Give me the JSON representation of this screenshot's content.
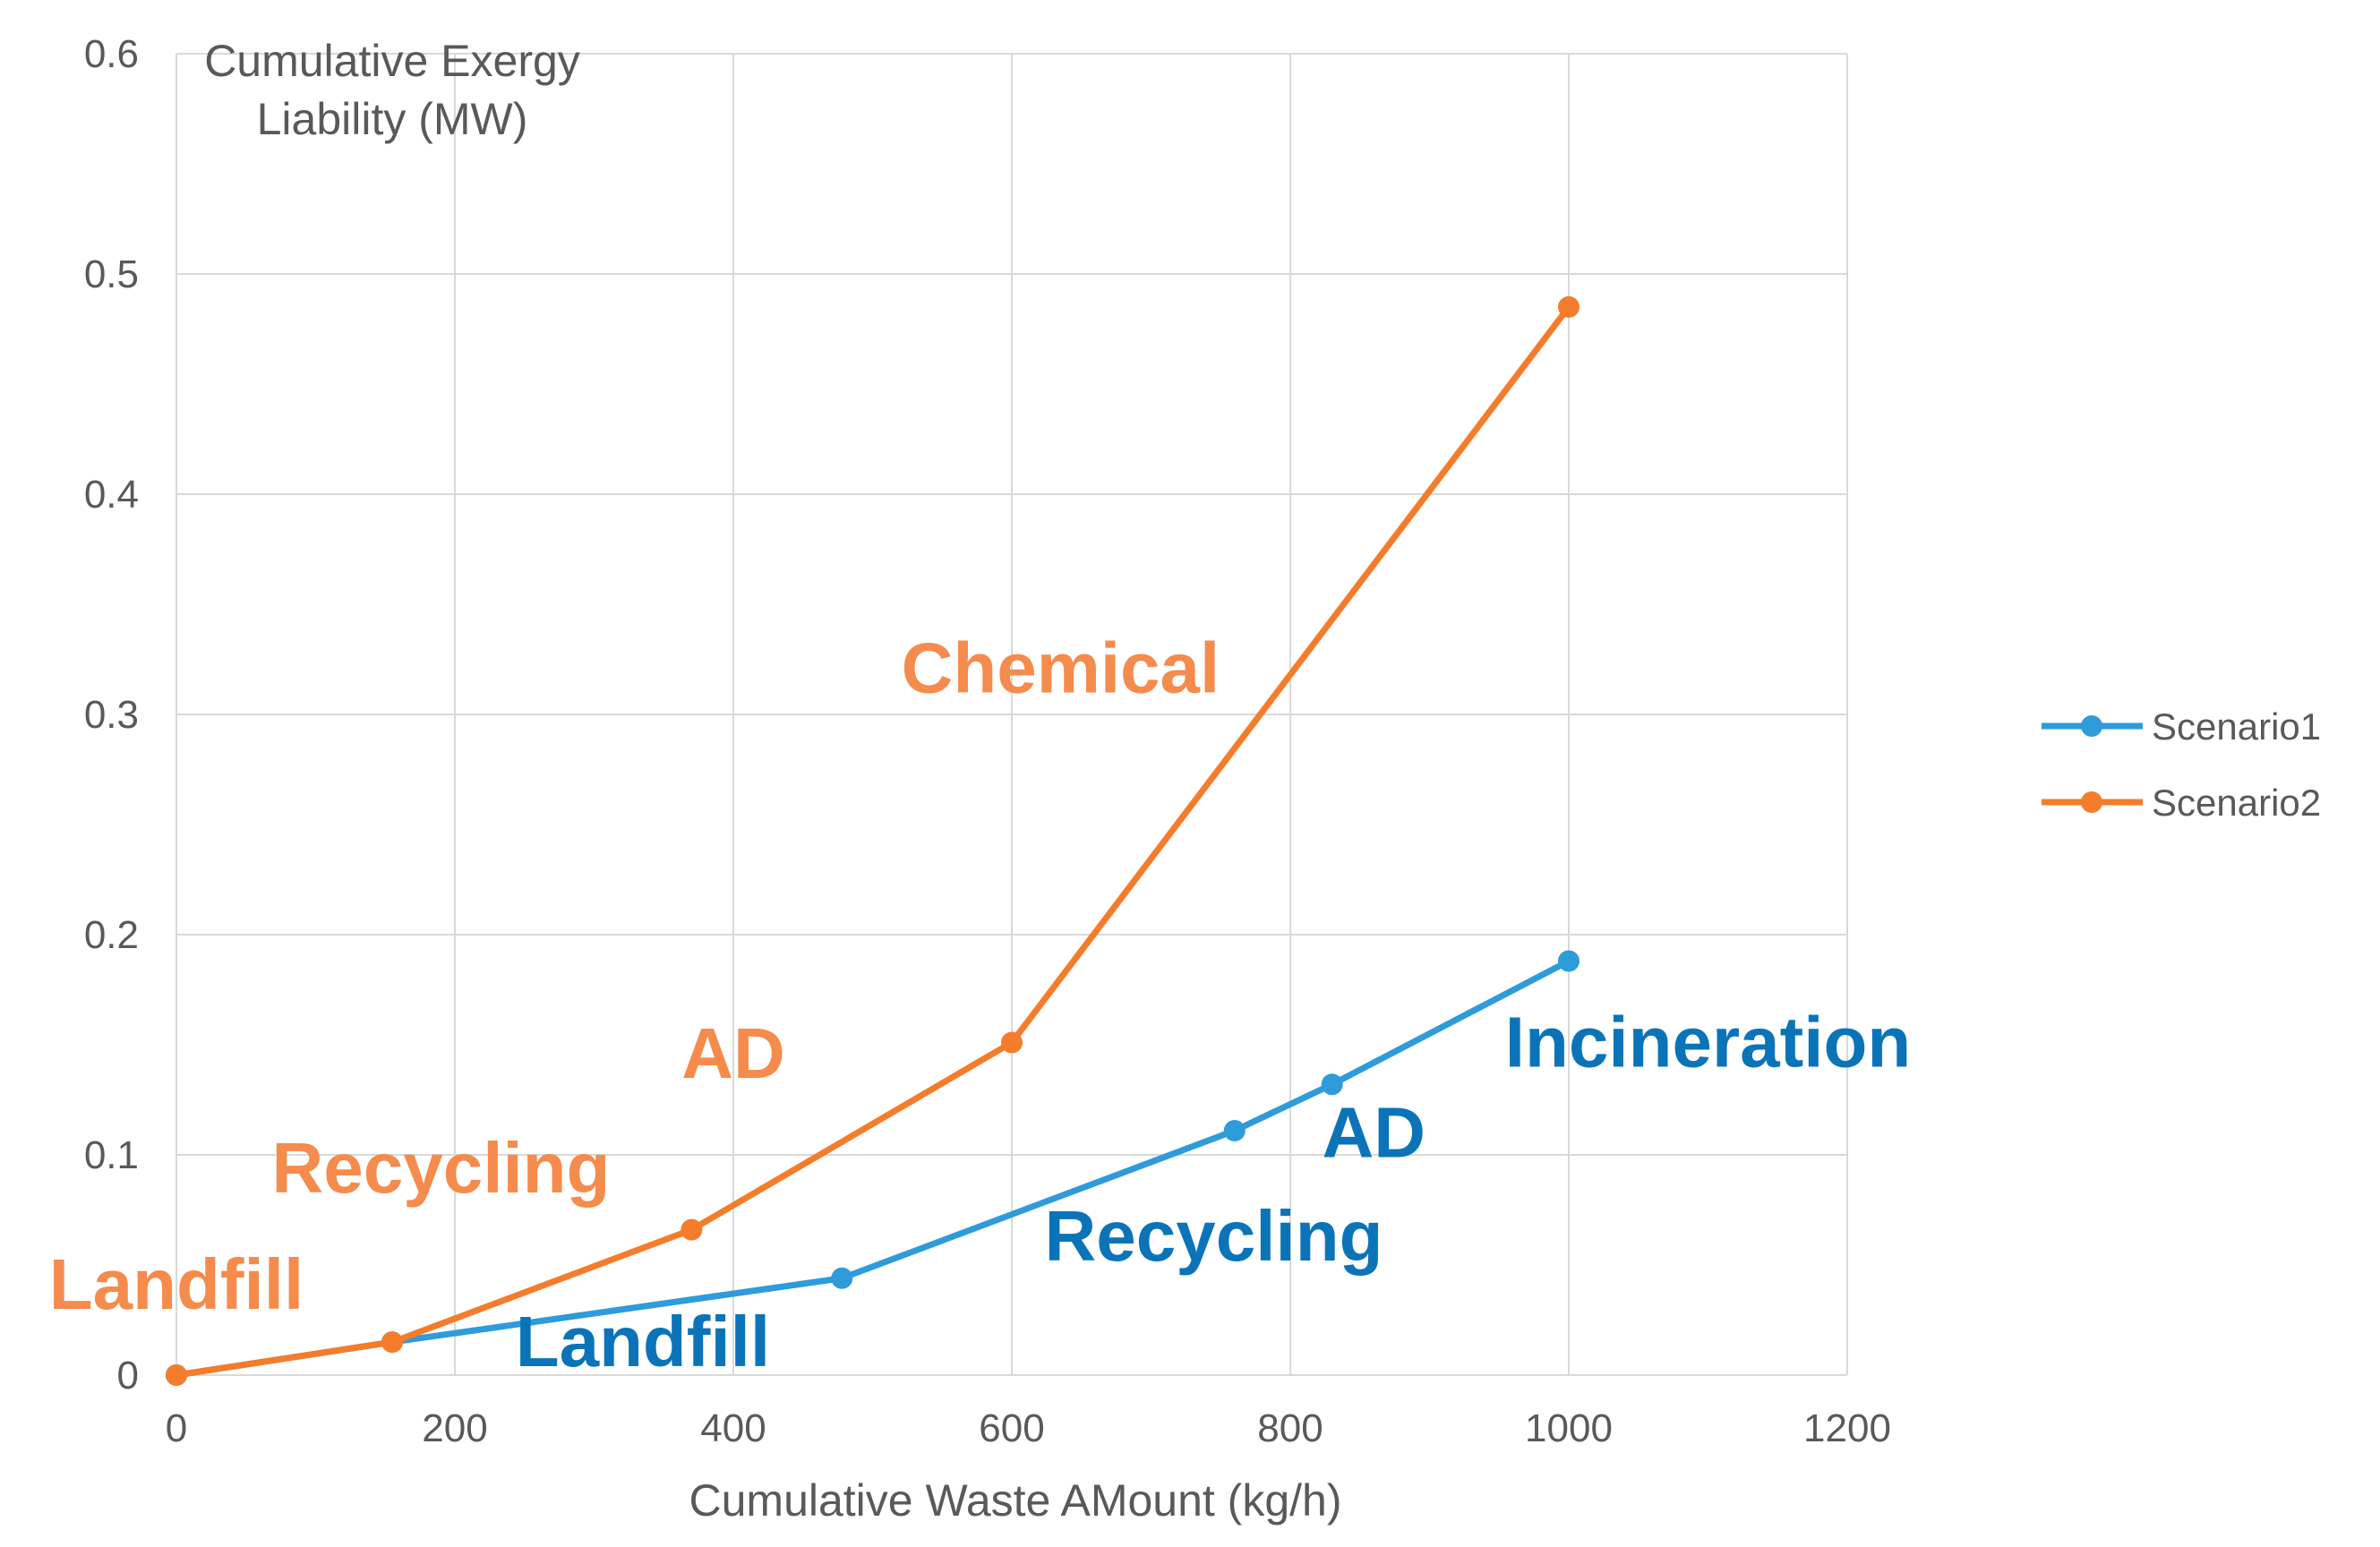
{
  "chart_data": {
    "type": "line",
    "title": "",
    "xlabel": "Cumulative Waste AMount (kg/h)",
    "ylabel": [
      "Cumulative Exergy",
      "Liability (MW)"
    ],
    "xlim": [
      0,
      1200
    ],
    "ylim": [
      0,
      0.6
    ],
    "x_ticks": [
      0,
      200,
      400,
      600,
      800,
      1000,
      1200
    ],
    "x_tick_labels": [
      "0",
      "200",
      "400",
      "600",
      "800",
      "1000",
      "1200"
    ],
    "y_ticks": [
      0,
      0.1,
      0.2,
      0.3,
      0.4,
      0.5,
      0.6
    ],
    "y_tick_labels": [
      "0",
      "0.1",
      "0.2",
      "0.3",
      "0.4",
      "0.5",
      "0.6"
    ],
    "grid": true,
    "legend_position": "right",
    "series": [
      {
        "name": "Scenario1",
        "color": "#2E9BDA",
        "points": [
          [
            0,
            0
          ],
          [
            155,
            0.015
          ],
          [
            478,
            0.044
          ],
          [
            760,
            0.111
          ],
          [
            830,
            0.132
          ],
          [
            1000,
            0.188
          ]
        ]
      },
      {
        "name": "Scenario2",
        "color": "#F47C2A",
        "points": [
          [
            0,
            0
          ],
          [
            155,
            0.015
          ],
          [
            370,
            0.066
          ],
          [
            600,
            0.151
          ],
          [
            1000,
            0.485
          ]
        ]
      }
    ],
    "annotations": [
      {
        "text": "Landfill",
        "series": "Scenario2",
        "color": "#F58B4C",
        "x": 0,
        "y": 0.03
      },
      {
        "text": "Recycling",
        "series": "Scenario2",
        "color": "#F58B4C",
        "x": 190,
        "y": 0.083
      },
      {
        "text": "AD",
        "series": "Scenario2",
        "color": "#F58B4C",
        "x": 400,
        "y": 0.135
      },
      {
        "text": "Chemical",
        "series": "Scenario2",
        "color": "#F58B4C",
        "x": 635,
        "y": 0.31
      },
      {
        "text": "Landfill",
        "series": "Scenario1",
        "color": "#0B74B8",
        "x": 335,
        "y": 0.004
      },
      {
        "text": "Recycling",
        "series": "Scenario1",
        "color": "#0B74B8",
        "x": 745,
        "y": 0.052
      },
      {
        "text": "AD",
        "series": "Scenario1",
        "color": "#0B74B8",
        "x": 860,
        "y": 0.099
      },
      {
        "text": "Incineration",
        "series": "Scenario1",
        "color": "#0B74B8",
        "x": 1100,
        "y": 0.14
      }
    ]
  }
}
